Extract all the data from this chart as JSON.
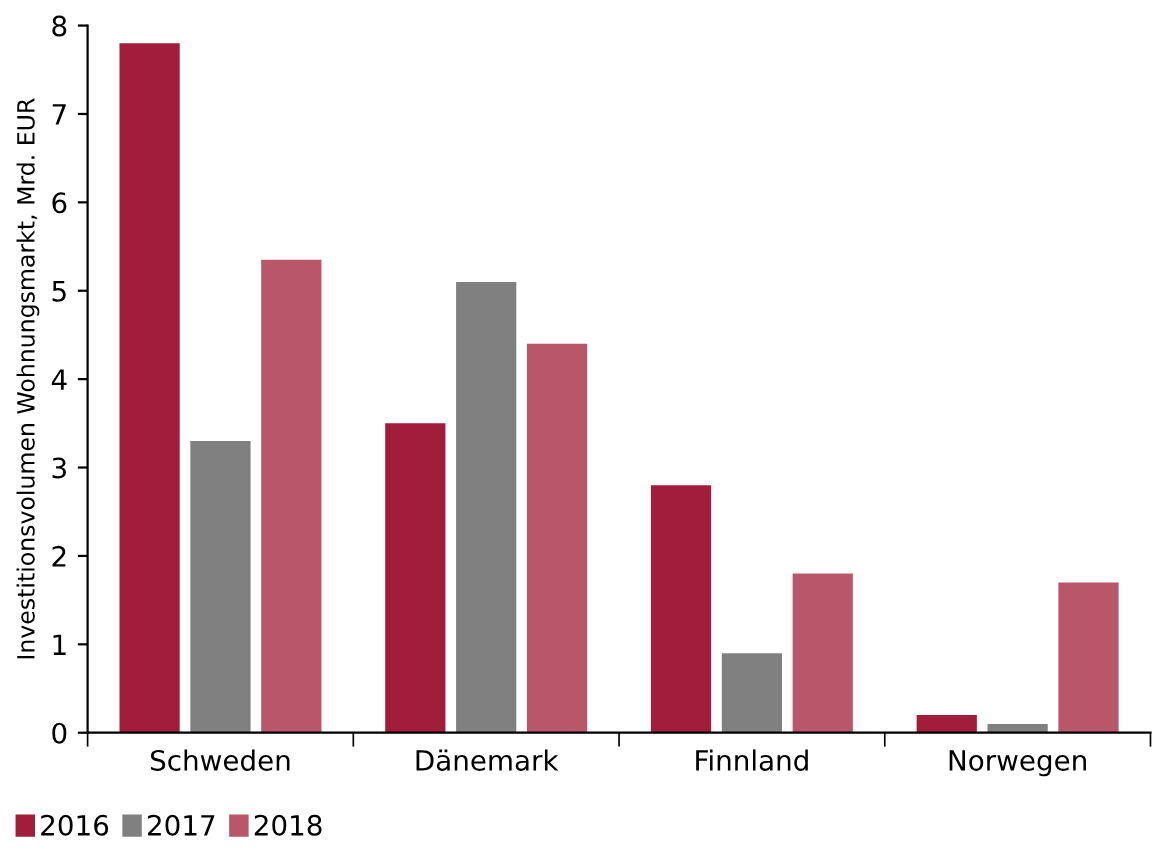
{
  "chart_data": {
    "type": "bar",
    "ylabel": "Investitionsvolumen Wohnungsmarkt, Mrd. EUR",
    "categories": [
      "Schweden",
      "Dänemark",
      "Finnland",
      "Norwegen"
    ],
    "series": [
      {
        "name": "2016",
        "color": "#a11d3a",
        "values": [
          7.8,
          3.5,
          2.8,
          0.2
        ]
      },
      {
        "name": "2017",
        "color": "#808080",
        "values": [
          3.3,
          5.1,
          0.9,
          0.1
        ]
      },
      {
        "name": "2018",
        "color": "#b9566a",
        "values": [
          5.35,
          4.4,
          1.8,
          1.7
        ]
      }
    ],
    "ylim": [
      0,
      8
    ],
    "yticks": [
      0,
      1,
      2,
      3,
      4,
      5,
      6,
      7,
      8
    ],
    "grid": false,
    "legend": "bottom left"
  }
}
